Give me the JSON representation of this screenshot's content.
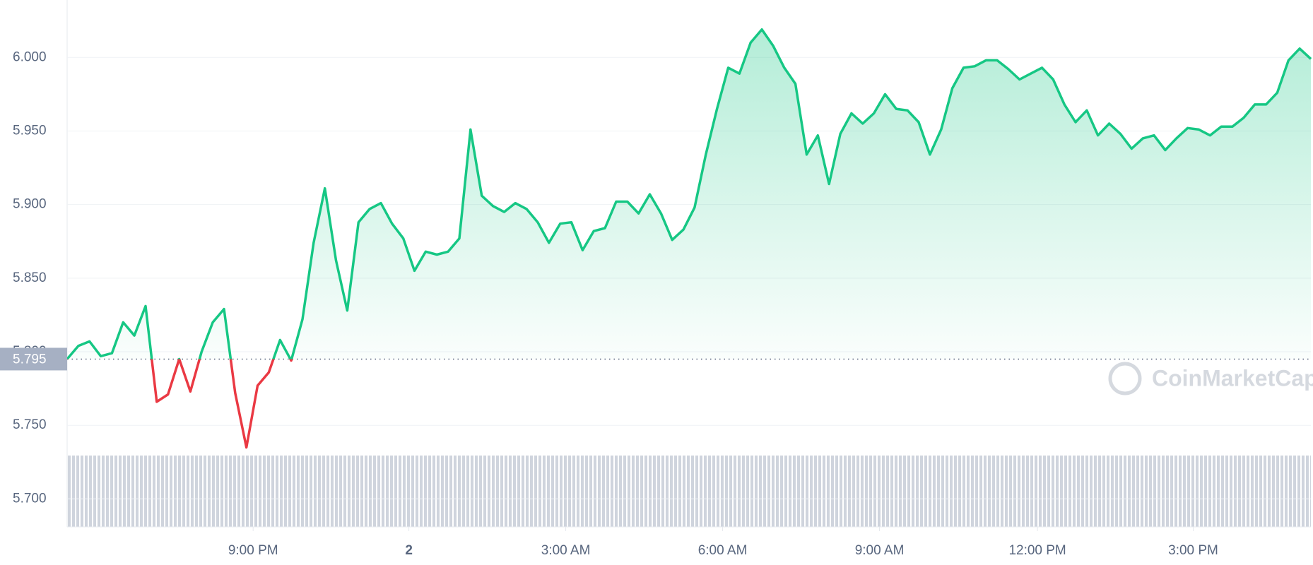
{
  "chart_data": {
    "type": "line",
    "watermark": "CoinMarketCap",
    "baseline": 5.795,
    "up_color": "#16c784",
    "down_color": "#ea3943",
    "xlim": [
      0,
      111
    ],
    "xticks": [
      {
        "value": 16.6,
        "label": "9:00 PM"
      },
      {
        "value": 30.5,
        "label": "2"
      },
      {
        "value": 44.5,
        "label": "3:00 AM"
      },
      {
        "value": 58.5,
        "label": "6:00 AM"
      },
      {
        "value": 72.5,
        "label": "9:00 AM"
      },
      {
        "value": 86.6,
        "label": "12:00 PM"
      },
      {
        "value": 100.5,
        "label": "3:00 PM"
      }
    ],
    "ylim": [
      5.681,
      6.039
    ],
    "yticks": [
      {
        "value": 5.7,
        "label": "5.700"
      },
      {
        "value": 5.75,
        "label": "5.750"
      },
      {
        "value": 5.8,
        "label": "5.800"
      },
      {
        "value": 5.85,
        "label": "5.850"
      },
      {
        "value": 5.9,
        "label": "5.900"
      },
      {
        "value": 5.95,
        "label": "5.950"
      },
      {
        "value": 6,
        "label": "6.000"
      }
    ],
    "grid": true,
    "values": [
      5.795,
      5.804,
      5.807,
      5.797,
      5.799,
      5.82,
      5.811,
      5.831,
      5.766,
      5.771,
      5.795,
      5.773,
      5.8,
      5.82,
      5.829,
      5.772,
      5.735,
      5.777,
      5.786,
      5.808,
      5.794,
      5.822,
      5.874,
      5.911,
      5.862,
      5.828,
      5.888,
      5.897,
      5.901,
      5.887,
      5.877,
      5.855,
      5.868,
      5.866,
      5.868,
      5.877,
      5.951,
      5.906,
      5.899,
      5.895,
      5.901,
      5.897,
      5.888,
      5.874,
      5.887,
      5.888,
      5.869,
      5.882,
      5.884,
      5.902,
      5.902,
      5.894,
      5.907,
      5.894,
      5.876,
      5.883,
      5.898,
      5.934,
      5.965,
      5.993,
      5.989,
      6.01,
      6.019,
      6.008,
      5.993,
      5.982,
      5.934,
      5.947,
      5.914,
      5.948,
      5.962,
      5.955,
      5.962,
      5.975,
      5.965,
      5.964,
      5.956,
      5.934,
      5.951,
      5.979,
      5.993,
      5.994,
      5.998,
      5.998,
      5.992,
      5.985,
      5.989,
      5.993,
      5.985,
      5.968,
      5.956,
      5.964,
      5.947,
      5.955,
      5.948,
      5.938,
      5.945,
      5.947,
      5.937,
      5.945,
      5.952,
      5.951,
      5.947,
      5.953,
      5.953,
      5.959,
      5.968,
      5.968,
      5.976,
      5.998,
      6.006,
      5.999
    ]
  }
}
